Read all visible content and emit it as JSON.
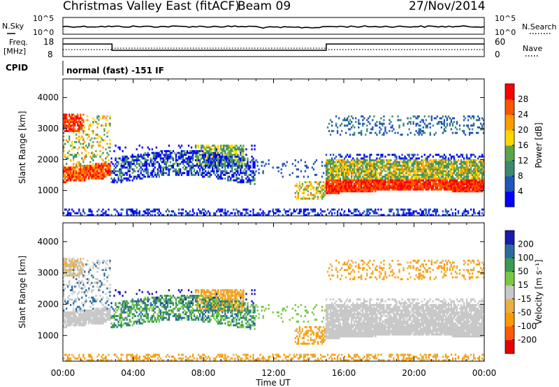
{
  "header": {
    "site": "Christmas Valley East (fitACF)",
    "beam": "Beam 09",
    "date": "27/Nov/2014"
  },
  "noise_panel": {
    "left_label": "N.Sky",
    "right_label": "N.Search",
    "left_ticks": [
      "10^5",
      "10^0"
    ],
    "right_ticks": [
      "10^5",
      "10^0"
    ]
  },
  "freq_panel": {
    "left_label_line1": "Freq.",
    "left_label_line2": "[MHz]",
    "right_label": "Nave",
    "left_ticks": [
      "18",
      "8"
    ],
    "right_ticks": [
      "60",
      "0"
    ]
  },
  "cpid_panel": {
    "label": "CPID",
    "text": "normal (fast) -151 IF"
  },
  "colors": {
    "power": [
      "#0000ff",
      "#2255bb",
      "#3c8a6e",
      "#5aa64a",
      "#ffd700",
      "#ff9900",
      "#ff5500",
      "#ff0000"
    ],
    "velocity": [
      "#e60000",
      "#ff5a00",
      "#ff9900",
      "#e8b040",
      "#c8c8c8",
      "#7ac943",
      "#3a9a50",
      "#2a6c9e",
      "#1a1ab0"
    ]
  },
  "chart_data": [
    {
      "type": "heatmap",
      "name": "power",
      "xlabel": "",
      "ylabel": "Slant Range [km]",
      "x_ticks": [
        "00:00",
        "04:00",
        "08:00",
        "12:00",
        "16:00",
        "20:00",
        "00:00"
      ],
      "y_ticks": [
        1000,
        2000,
        3000,
        4000
      ],
      "ylim": [
        180,
        4600
      ],
      "colorbar": {
        "label": "Power [dB]",
        "ticks": [
          4,
          8,
          12,
          16,
          20,
          24,
          28
        ],
        "range": [
          0,
          32
        ]
      }
    },
    {
      "type": "heatmap",
      "name": "velocity",
      "xlabel": "Time UT",
      "ylabel": "Slant Range [km]",
      "x_ticks": [
        "00:00",
        "04:00",
        "08:00",
        "12:00",
        "16:00",
        "20:00",
        "00:00"
      ],
      "y_ticks": [
        1000,
        2000,
        3000,
        4000
      ],
      "ylim": [
        180,
        4600
      ],
      "colorbar": {
        "label": "Velocity [m s⁻¹]",
        "ticks": [
          "-200",
          "-100",
          "-50",
          "-15",
          "15",
          "50",
          "100",
          "200"
        ]
      }
    }
  ]
}
